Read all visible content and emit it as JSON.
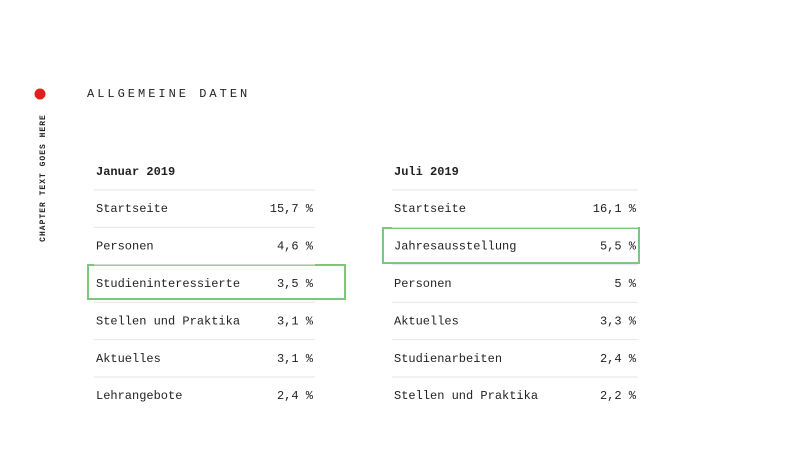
{
  "sidebar": "CHAPTER TEXT GOES HERE",
  "title": "ALLGEMEINE DATEN",
  "tables": [
    {
      "header": "Januar 2019",
      "rows": [
        [
          "Startseite",
          "15,7 %"
        ],
        [
          "Personen",
          "4,6 %"
        ],
        [
          "Studieninteressierte",
          "3,5 %"
        ],
        [
          "Stellen und Praktika",
          "3,1 %"
        ],
        [
          "Aktuelles",
          "3,1 %"
        ],
        [
          "Lehrangebote",
          "2,4 %"
        ]
      ]
    },
    {
      "header": "Juli 2019",
      "rows": [
        [
          "Startseite",
          "16,1 %"
        ],
        [
          "Jahresausstellung",
          "5,5 %"
        ],
        [
          "Personen",
          "5 %"
        ],
        [
          "Aktuelles",
          "3,3 %"
        ],
        [
          "Studienarbeiten",
          "2,4 %"
        ],
        [
          "Stellen und Praktika",
          "2,2 %"
        ]
      ]
    }
  ]
}
